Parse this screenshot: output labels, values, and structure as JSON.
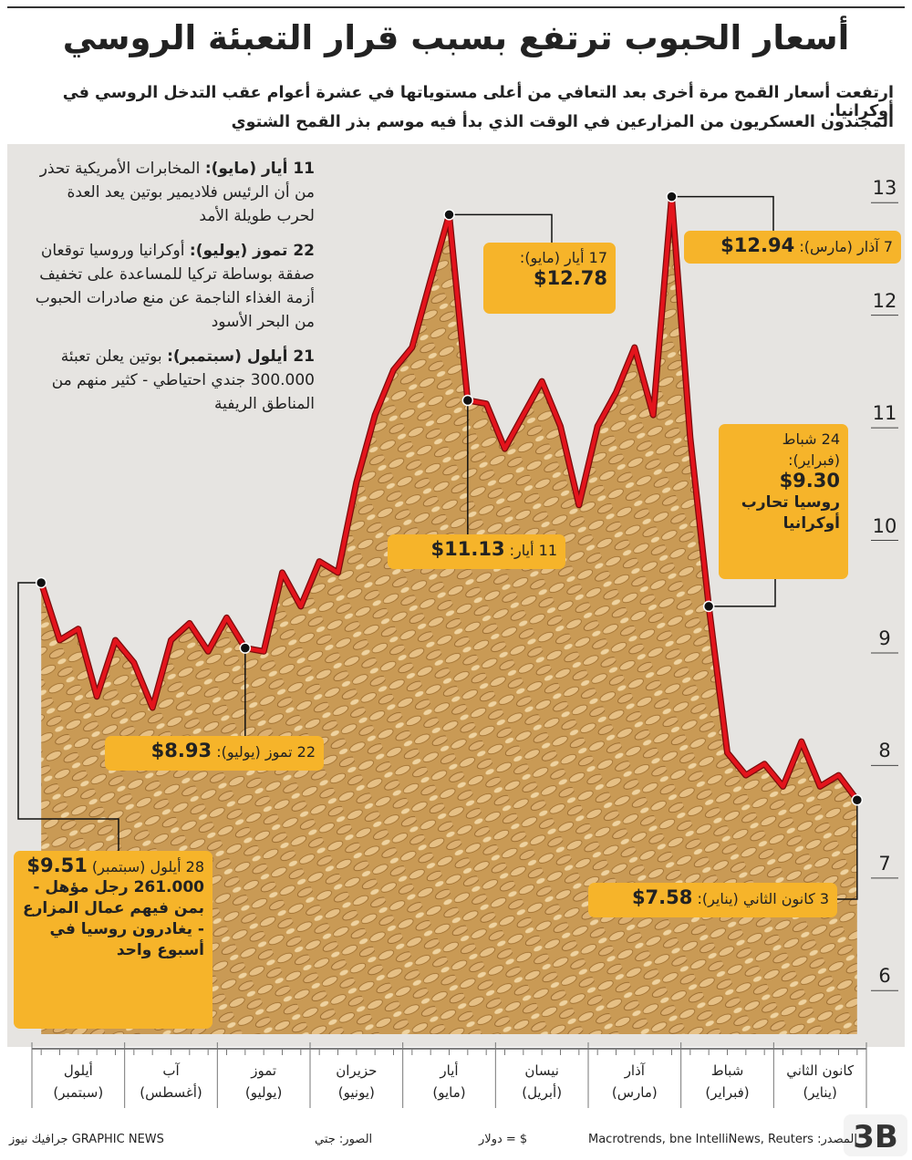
{
  "header": {
    "title": "أسعار الحبوب ترتفع بسبب قرار التعبئة الروسي",
    "subtitle": [
      "ارتفعت أسعار القمح مرة أخرى بعد التعافي من أعلى مستوياتها في عشرة أعوام عقب التدخل الروسي في أوكرانيا.",
      "المجندون العسكريون من المزارعين  في الوقت الذي بدأ فيه موسم بذر القمح الشتوي"
    ]
  },
  "events": [
    {
      "date": "11 أيار (مايو):",
      "text": "المخابرات الأمريكية تحذر من أن الرئيس فلاديمير بوتين يعد العدة لحرب طويلة الأمد"
    },
    {
      "date": "22 تموز (يوليو):",
      "text": "أوكرانيا وروسيا توقعان صفقة بوساطة تركيا للمساعدة على تخفيف أزمة الغذاء الناجمة عن منع صادرات الحبوب من البحر الأسود"
    },
    {
      "date": "21 أيلول (سبتمبر):",
      "text": "بوتين يعلن تعبئة 300.000 جندي احتياطي - كثير منهم من المناطق الريفية"
    }
  ],
  "chart_data": {
    "type": "line",
    "categories": [
      null,
      null,
      "أيلول\n(سبتمبر)",
      null,
      null,
      null,
      null,
      "آب\n(أغسطس)",
      null,
      null,
      null,
      null,
      "تموز\n(يوليو)",
      null,
      null,
      null,
      null,
      "حزيران\n(يونيو)",
      null,
      null,
      null,
      null,
      "أيار\n(مايو)",
      null,
      null,
      null,
      null,
      "نيسان\n(أبريل)",
      null,
      null,
      null,
      null,
      "آذار\n(مارس)",
      null,
      null,
      null,
      null,
      "شباط\n(فبراير)",
      null,
      null,
      null,
      null,
      "كانون الثاني\n(يناير)",
      null,
      null
    ],
    "series": [
      {
        "color": "#e3141c",
        "values": [
          9.51,
          9.0,
          9.1,
          8.5,
          9.0,
          8.8,
          8.4,
          9.0,
          9.15,
          8.9,
          9.2,
          8.93,
          8.9,
          9.6,
          9.3,
          9.7,
          9.6,
          10.4,
          11.0,
          11.4,
          11.6,
          12.2,
          12.78,
          11.13,
          11.1,
          10.7,
          11.0,
          11.3,
          10.9,
          10.2,
          10.9,
          11.2,
          11.6,
          11.0,
          12.94,
          10.8,
          9.3,
          8.0,
          7.8,
          7.9,
          7.7,
          8.1,
          7.7,
          7.8,
          7.58
        ],
        "value_labels": [
          "$9.51",
          null,
          null,
          null,
          null,
          null,
          null,
          null,
          null,
          null,
          null,
          "$8.93",
          null,
          null,
          null,
          null,
          null,
          null,
          null,
          null,
          null,
          null,
          "$12.78",
          "$11.13",
          null,
          null,
          null,
          null,
          null,
          null,
          null,
          null,
          null,
          null,
          "$12.94",
          null,
          "$9.30",
          null,
          null,
          null,
          null,
          null,
          null,
          null,
          "$7.58"
        ],
        "value_dates": [
          "28 أيلول (سبتمبر)",
          null,
          null,
          null,
          null,
          null,
          null,
          null,
          null,
          null,
          null,
          "22 تموز (يوليو):",
          null,
          null,
          null,
          null,
          null,
          null,
          null,
          null,
          null,
          null,
          "17 أيار (مايو):",
          "11 أيار:",
          null,
          null,
          null,
          null,
          null,
          null,
          null,
          null,
          null,
          null,
          "7 آذار (مارس):",
          null,
          "24 شباط (فبراير):",
          null,
          null,
          null,
          null,
          null,
          null,
          null,
          "3 كانون الثاني (يناير):"
        ],
        "value_notes": [
          "261.000 رجل مؤهل - بمن فيهم عمال المزارع - يغادرون روسيا في أسبوع واحد",
          null,
          null,
          null,
          null,
          null,
          null,
          null,
          null,
          null,
          null,
          null,
          null,
          null,
          null,
          null,
          null,
          null,
          null,
          null,
          null,
          null,
          null,
          null,
          null,
          null,
          null,
          null,
          null,
          null,
          null,
          null,
          null,
          null,
          null,
          null,
          "روسيا تحارب أوكرانيا",
          null,
          null,
          null,
          null,
          null,
          null,
          null,
          null
        ]
      }
    ],
    "ylim": [
      5.5,
      13.35
    ],
    "yticks": [
      6,
      7,
      8,
      9,
      10,
      11,
      12,
      13
    ]
  },
  "footer": {
    "source": "المصدر: Macrotrends, bne IntelliNews, Reuters",
    "unit": "$ = دولار",
    "photos": "الصور: جتي",
    "credit": "GRAPHIC NEWS جرافيك نيوز"
  }
}
